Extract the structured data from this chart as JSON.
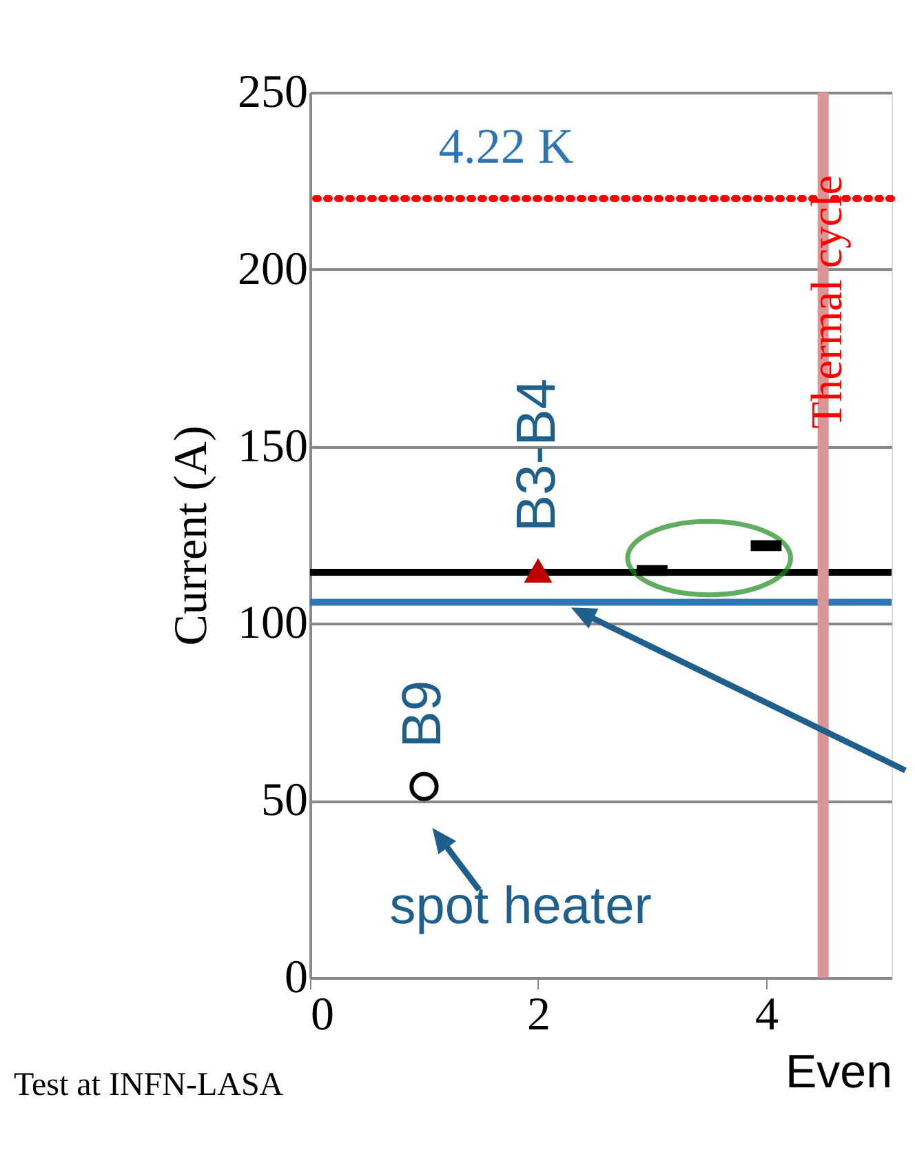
{
  "chart_data": {
    "type": "scatter",
    "xlabel": "Even",
    "ylabel": "Current (A)",
    "xlim": [
      0,
      5.1
    ],
    "xticks": [
      0,
      2,
      4
    ],
    "ylim": [
      0,
      250
    ],
    "yticks": [
      0,
      50,
      100,
      150,
      200,
      250
    ],
    "grid": "y",
    "series": [
      {
        "name": "B9",
        "color": "#000000",
        "marker": "circle",
        "x": [
          1
        ],
        "values": [
          54
        ]
      },
      {
        "name": "B3-B4",
        "color": "#c00000",
        "marker": "triangle",
        "x": [
          2
        ],
        "values": [
          115
        ]
      },
      {
        "color": "#000000",
        "marker": "square",
        "x": [
          3,
          4
        ],
        "values": [
          115,
          122
        ]
      }
    ],
    "ref_lines": [
      {
        "axis": "y",
        "value": 220,
        "color": "#ff0000",
        "line_style": "dotted"
      },
      {
        "axis": "y",
        "value": 114.5,
        "color": "#000000",
        "line_style": "solid"
      },
      {
        "axis": "y",
        "value": 106,
        "color": "#2e75b6",
        "line_style": "solid"
      },
      {
        "axis": "x",
        "value": 4.5,
        "color": "#d99694",
        "line_style": "solid",
        "label": "Thermal cycle"
      }
    ],
    "annotations": [
      "4.22 K",
      "Test at INFN-LASA",
      {
        "text": "spot heater",
        "x": 1,
        "y": 54
      }
    ]
  }
}
